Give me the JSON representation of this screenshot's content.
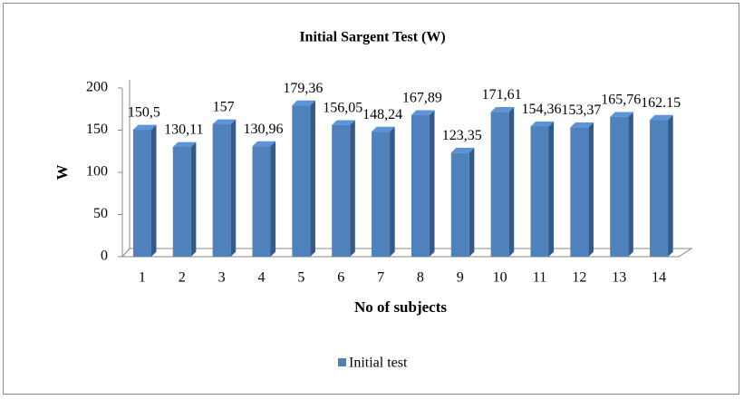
{
  "chart_data": {
    "type": "bar",
    "title": "Initial Sargent  Test (W)",
    "xlabel": "No of subjects",
    "ylabel": "W",
    "categories": [
      "1",
      "2",
      "3",
      "4",
      "5",
      "6",
      "7",
      "8",
      "9",
      "10",
      "11",
      "12",
      "13",
      "14"
    ],
    "series": [
      {
        "name": "Initial test",
        "color": "#4f81bd",
        "values": [
          150.5,
          130.11,
          157,
          130.96,
          179.36,
          156.05,
          148.24,
          167.89,
          123.35,
          171.61,
          154.36,
          153.37,
          165.76,
          162.15
        ],
        "value_labels": [
          "150,5",
          "130,11",
          "157",
          "130,96",
          "179,36",
          "156,05",
          "148,24",
          "167,89",
          "123,35",
          "171,61",
          "154,36",
          "153,37",
          "165,76",
          "162.15"
        ]
      }
    ],
    "ylim": [
      0,
      200
    ],
    "yticks": [
      0,
      50,
      100,
      150,
      200
    ],
    "legend": "bottom"
  }
}
